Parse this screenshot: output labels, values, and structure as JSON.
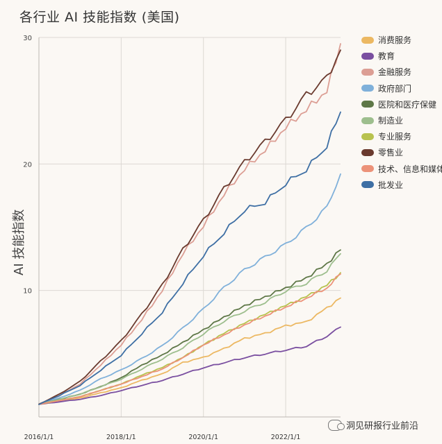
{
  "chart_data": {
    "type": "line",
    "title": "各行业 AI 技能指数 (美国)",
    "xlabel": "",
    "ylabel": "AI 技能指数",
    "x_tick_labels": [
      "2016/1/1",
      "2018/1/1",
      "2020/1/1",
      "2022/1/1"
    ],
    "x_tick_positions": [
      0,
      24,
      48,
      72
    ],
    "x_range": [
      0,
      88
    ],
    "ylim": [
      0,
      30
    ],
    "y_ticks": [
      10,
      20,
      30
    ],
    "grid": true,
    "legend_position": "right",
    "time_points_months": [
      0,
      6,
      12,
      18,
      24,
      30,
      36,
      42,
      48,
      54,
      60,
      66,
      72,
      78,
      84,
      88
    ],
    "series": [
      {
        "name": "消费服务",
        "color": "#ecb862",
        "values": [
          1.0,
          1.2,
          1.5,
          1.9,
          2.3,
          2.9,
          3.4,
          4.3,
          4.7,
          5.4,
          6.2,
          6.6,
          7.2,
          7.5,
          8.6,
          9.4
        ]
      },
      {
        "name": "教育",
        "color": "#7a4fa0",
        "values": [
          1.0,
          1.2,
          1.4,
          1.7,
          2.1,
          2.5,
          2.9,
          3.4,
          3.9,
          4.3,
          4.7,
          5.0,
          5.3,
          5.6,
          6.4,
          7.1
        ]
      },
      {
        "name": "金融服务",
        "color": "#dc9e94",
        "values": [
          1.0,
          1.7,
          2.6,
          4.1,
          5.7,
          7.7,
          10.0,
          12.9,
          15.1,
          17.6,
          19.6,
          21.1,
          22.9,
          24.3,
          25.8,
          29.5
        ]
      },
      {
        "name": "政府部门",
        "color": "#7fb0da",
        "values": [
          1.0,
          1.5,
          2.1,
          3.0,
          3.7,
          4.6,
          5.6,
          7.0,
          8.5,
          10.2,
          11.6,
          12.6,
          13.6,
          14.9,
          16.5,
          19.2
        ]
      },
      {
        "name": "医院和医疗保健",
        "color": "#5e7747",
        "values": [
          1.0,
          1.4,
          1.8,
          2.4,
          3.1,
          4.1,
          4.9,
          5.9,
          6.9,
          7.9,
          8.8,
          9.5,
          10.2,
          11.0,
          12.1,
          13.2
        ]
      },
      {
        "name": "制造业",
        "color": "#9dbe8d",
        "values": [
          1.0,
          1.4,
          1.8,
          2.4,
          3.0,
          3.8,
          4.6,
          5.5,
          6.6,
          7.6,
          8.4,
          9.1,
          10.0,
          10.6,
          11.6,
          12.9
        ]
      },
      {
        "name": "专业服务",
        "color": "#b8c24e",
        "values": [
          1.0,
          1.3,
          1.6,
          2.1,
          2.6,
          3.3,
          3.9,
          4.7,
          5.7,
          6.6,
          7.4,
          8.1,
          8.8,
          9.5,
          10.4,
          11.4
        ]
      },
      {
        "name": "零售业",
        "color": "#6a3a2e",
        "values": [
          1.0,
          1.8,
          2.8,
          4.4,
          6.0,
          8.1,
          10.4,
          13.2,
          15.5,
          18.0,
          20.1,
          21.7,
          23.4,
          25.4,
          26.7,
          29.0
        ]
      },
      {
        "name": "技术、信息和媒体",
        "color": "#ec9279",
        "values": [
          1.0,
          1.3,
          1.6,
          2.1,
          2.6,
          3.2,
          3.8,
          4.7,
          5.7,
          6.5,
          7.3,
          8.0,
          8.7,
          9.4,
          10.2,
          11.3
        ]
      },
      {
        "name": "批发业",
        "color": "#3e6fa4",
        "values": [
          1.0,
          1.7,
          2.5,
          3.7,
          4.9,
          6.6,
          8.3,
          10.6,
          12.8,
          14.6,
          16.4,
          17.0,
          18.5,
          19.6,
          21.5,
          24.1
        ]
      }
    ]
  },
  "watermark": {
    "text": "洞见研报行业前沿"
  }
}
